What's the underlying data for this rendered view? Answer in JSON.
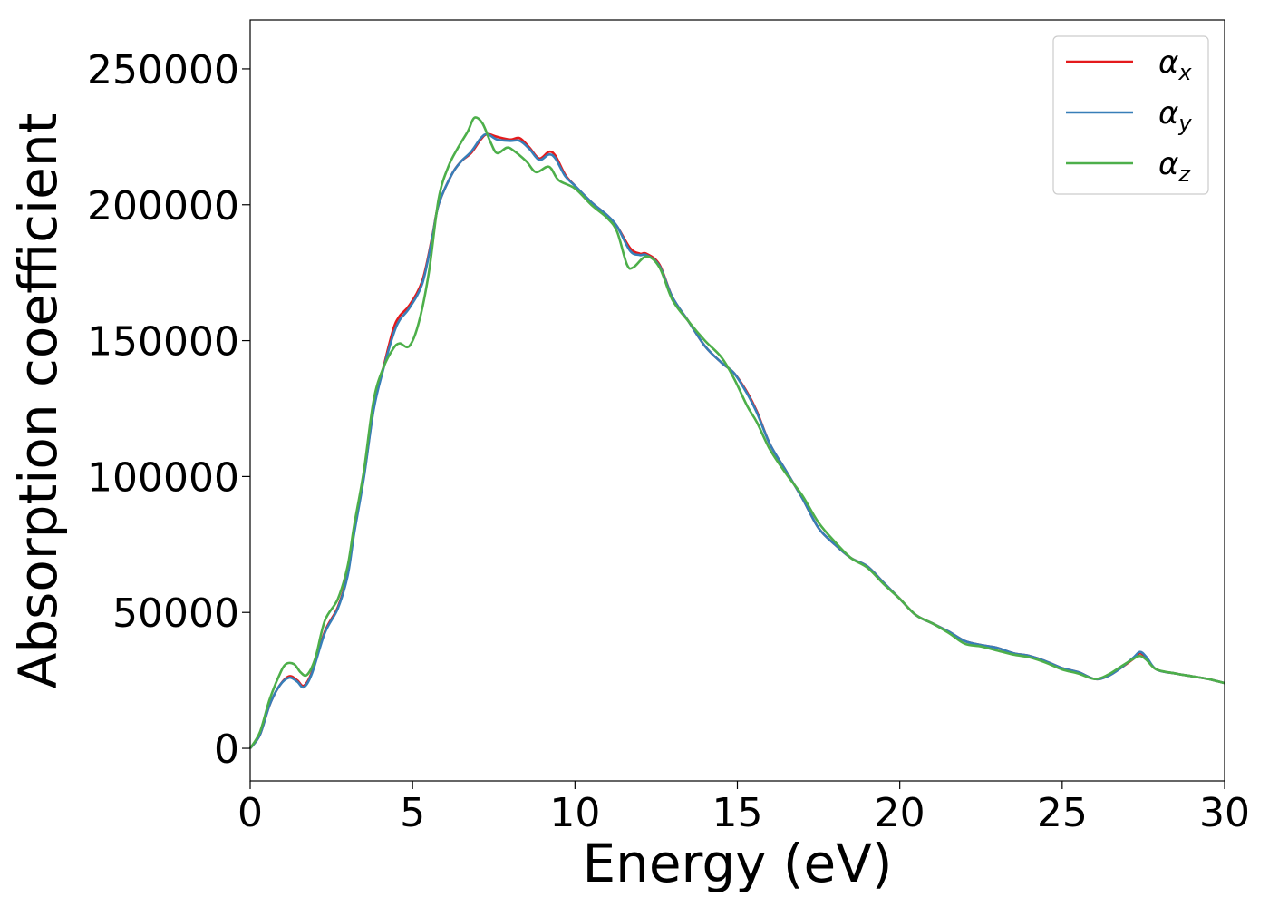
{
  "chart_data": {
    "type": "line",
    "xlabel": "Energy (eV)",
    "ylabel": "Absorption coefficient",
    "xlim": [
      0,
      30
    ],
    "ylim": [
      -12000,
      268000
    ],
    "xticks": [
      0,
      5,
      10,
      15,
      20,
      25,
      30
    ],
    "xtick_labels": [
      "0",
      "5",
      "10",
      "15",
      "20",
      "25",
      "30"
    ],
    "yticks": [
      0,
      50000,
      100000,
      150000,
      200000,
      250000
    ],
    "ytick_labels": [
      "0",
      "50000",
      "100000",
      "150000",
      "200000",
      "250000"
    ],
    "grid": false,
    "legend": {
      "position": "top-right"
    },
    "series": [
      {
        "name": "α",
        "subscript": "x",
        "color": "#e41a1c",
        "points": [
          [
            0,
            0
          ],
          [
            0.3,
            5000
          ],
          [
            0.6,
            16000
          ],
          [
            0.9,
            23000
          ],
          [
            1.2,
            26500
          ],
          [
            1.45,
            25000
          ],
          [
            1.65,
            23000
          ],
          [
            1.9,
            28000
          ],
          [
            2.3,
            43000
          ],
          [
            2.7,
            52000
          ],
          [
            3.0,
            64000
          ],
          [
            3.2,
            80000
          ],
          [
            3.5,
            100000
          ],
          [
            3.8,
            125000
          ],
          [
            4.1,
            140000
          ],
          [
            4.4,
            154000
          ],
          [
            4.6,
            159000
          ],
          [
            4.9,
            163000
          ],
          [
            5.3,
            172000
          ],
          [
            5.6,
            188000
          ],
          [
            5.8,
            200000
          ],
          [
            6.2,
            211000
          ],
          [
            6.5,
            216000
          ],
          [
            6.8,
            219000
          ],
          [
            7.1,
            224000
          ],
          [
            7.3,
            226000
          ],
          [
            7.6,
            225000
          ],
          [
            8.0,
            224000
          ],
          [
            8.3,
            224500
          ],
          [
            8.6,
            221000
          ],
          [
            8.9,
            217000
          ],
          [
            9.2,
            219500
          ],
          [
            9.4,
            218000
          ],
          [
            9.7,
            211000
          ],
          [
            10.0,
            207000
          ],
          [
            10.5,
            201000
          ],
          [
            11.0,
            196000
          ],
          [
            11.3,
            192000
          ],
          [
            11.7,
            184000
          ],
          [
            12.0,
            182000
          ],
          [
            12.2,
            182000
          ],
          [
            12.6,
            178000
          ],
          [
            13.0,
            166000
          ],
          [
            13.5,
            157000
          ],
          [
            14.0,
            148000
          ],
          [
            14.5,
            142000
          ],
          [
            14.9,
            138000
          ],
          [
            15.3,
            131000
          ],
          [
            15.6,
            124000
          ],
          [
            16.0,
            112000
          ],
          [
            16.5,
            102000
          ],
          [
            17.0,
            92000
          ],
          [
            17.5,
            81000
          ],
          [
            18.0,
            75000
          ],
          [
            18.5,
            70000
          ],
          [
            19.0,
            67000
          ],
          [
            19.5,
            61000
          ],
          [
            20.0,
            55000
          ],
          [
            20.5,
            49000
          ],
          [
            21.0,
            46000
          ],
          [
            21.5,
            43000
          ],
          [
            22.0,
            39500
          ],
          [
            22.5,
            38000
          ],
          [
            23.0,
            37000
          ],
          [
            23.5,
            35000
          ],
          [
            24.0,
            34000
          ],
          [
            24.5,
            32000
          ],
          [
            25.0,
            29500
          ],
          [
            25.5,
            28000
          ],
          [
            26.0,
            25500
          ],
          [
            26.4,
            26500
          ],
          [
            26.8,
            29500
          ],
          [
            27.2,
            33000
          ],
          [
            27.4,
            35000
          ],
          [
            27.6,
            33000
          ],
          [
            27.9,
            29000
          ],
          [
            28.5,
            27500
          ],
          [
            29.0,
            26500
          ],
          [
            29.5,
            25500
          ],
          [
            30.0,
            24000
          ]
        ]
      },
      {
        "name": "α",
        "subscript": "y",
        "color": "#377eb8",
        "points": [
          [
            0,
            0
          ],
          [
            0.3,
            5000
          ],
          [
            0.6,
            16000
          ],
          [
            0.9,
            23000
          ],
          [
            1.2,
            26000
          ],
          [
            1.45,
            24500
          ],
          [
            1.65,
            22500
          ],
          [
            1.9,
            27500
          ],
          [
            2.3,
            42500
          ],
          [
            2.7,
            51500
          ],
          [
            3.0,
            63500
          ],
          [
            3.2,
            79000
          ],
          [
            3.5,
            99500
          ],
          [
            3.8,
            124500
          ],
          [
            4.1,
            139500
          ],
          [
            4.4,
            152000
          ],
          [
            4.6,
            157500
          ],
          [
            4.9,
            162000
          ],
          [
            5.3,
            171000
          ],
          [
            5.6,
            187500
          ],
          [
            5.8,
            200000
          ],
          [
            6.2,
            211000
          ],
          [
            6.5,
            216000
          ],
          [
            6.8,
            219500
          ],
          [
            7.1,
            224500
          ],
          [
            7.3,
            226000
          ],
          [
            7.6,
            224000
          ],
          [
            8.0,
            223500
          ],
          [
            8.3,
            223500
          ],
          [
            8.6,
            220500
          ],
          [
            8.9,
            216500
          ],
          [
            9.2,
            218500
          ],
          [
            9.4,
            217000
          ],
          [
            9.7,
            210500
          ],
          [
            10.0,
            207000
          ],
          [
            10.5,
            201000
          ],
          [
            11.0,
            196000
          ],
          [
            11.3,
            192000
          ],
          [
            11.7,
            183000
          ],
          [
            12.0,
            181500
          ],
          [
            12.2,
            181500
          ],
          [
            12.6,
            177500
          ],
          [
            13.0,
            166000
          ],
          [
            13.5,
            157000
          ],
          [
            14.0,
            148000
          ],
          [
            14.5,
            142000
          ],
          [
            14.9,
            138000
          ],
          [
            15.3,
            130500
          ],
          [
            15.6,
            123500
          ],
          [
            16.0,
            112000
          ],
          [
            16.5,
            102000
          ],
          [
            17.0,
            92000
          ],
          [
            17.5,
            81000
          ],
          [
            18.0,
            75000
          ],
          [
            18.5,
            70000
          ],
          [
            19.0,
            67000
          ],
          [
            19.5,
            61000
          ],
          [
            20.0,
            55000
          ],
          [
            20.5,
            49000
          ],
          [
            21.0,
            46000
          ],
          [
            21.5,
            43000
          ],
          [
            22.0,
            39500
          ],
          [
            22.5,
            38000
          ],
          [
            23.0,
            37000
          ],
          [
            23.5,
            35000
          ],
          [
            24.0,
            34000
          ],
          [
            24.5,
            32000
          ],
          [
            25.0,
            29500
          ],
          [
            25.5,
            28000
          ],
          [
            26.0,
            25500
          ],
          [
            26.4,
            26500
          ],
          [
            26.8,
            29500
          ],
          [
            27.2,
            33500
          ],
          [
            27.4,
            35500
          ],
          [
            27.6,
            33500
          ],
          [
            27.9,
            29000
          ],
          [
            28.5,
            27500
          ],
          [
            29.0,
            26500
          ],
          [
            29.5,
            25500
          ],
          [
            30.0,
            24000
          ]
        ]
      },
      {
        "name": "α",
        "subscript": "z",
        "color": "#4daf4a",
        "points": [
          [
            0,
            0
          ],
          [
            0.3,
            6000
          ],
          [
            0.6,
            18000
          ],
          [
            0.9,
            27000
          ],
          [
            1.1,
            31000
          ],
          [
            1.35,
            31000
          ],
          [
            1.55,
            28000
          ],
          [
            1.75,
            27000
          ],
          [
            2.0,
            33000
          ],
          [
            2.3,
            47000
          ],
          [
            2.7,
            55000
          ],
          [
            3.0,
            67000
          ],
          [
            3.2,
            82000
          ],
          [
            3.5,
            102000
          ],
          [
            3.8,
            128000
          ],
          [
            4.1,
            140000
          ],
          [
            4.4,
            147000
          ],
          [
            4.6,
            149000
          ],
          [
            4.9,
            148000
          ],
          [
            5.2,
            157000
          ],
          [
            5.5,
            175000
          ],
          [
            5.8,
            202000
          ],
          [
            6.1,
            214000
          ],
          [
            6.4,
            221000
          ],
          [
            6.7,
            227000
          ],
          [
            6.9,
            232000
          ],
          [
            7.15,
            230000
          ],
          [
            7.4,
            223000
          ],
          [
            7.6,
            219000
          ],
          [
            7.9,
            221000
          ],
          [
            8.1,
            220000
          ],
          [
            8.5,
            216000
          ],
          [
            8.8,
            212000
          ],
          [
            9.2,
            214000
          ],
          [
            9.5,
            209000
          ],
          [
            10.0,
            206000
          ],
          [
            10.5,
            200000
          ],
          [
            11.0,
            195000
          ],
          [
            11.3,
            190000
          ],
          [
            11.6,
            178000
          ],
          [
            11.8,
            177000
          ],
          [
            12.2,
            181000
          ],
          [
            12.6,
            177000
          ],
          [
            13.0,
            165000
          ],
          [
            13.5,
            157000
          ],
          [
            14.0,
            150000
          ],
          [
            14.5,
            144000
          ],
          [
            14.9,
            136000
          ],
          [
            15.3,
            126000
          ],
          [
            15.6,
            120000
          ],
          [
            16.0,
            110000
          ],
          [
            16.5,
            101000
          ],
          [
            17.0,
            93000
          ],
          [
            17.5,
            83000
          ],
          [
            18.0,
            76000
          ],
          [
            18.5,
            70000
          ],
          [
            19.0,
            66500
          ],
          [
            19.5,
            60500
          ],
          [
            20.0,
            55000
          ],
          [
            20.5,
            49000
          ],
          [
            21.0,
            46000
          ],
          [
            21.5,
            42500
          ],
          [
            22.0,
            38500
          ],
          [
            22.5,
            37500
          ],
          [
            23.0,
            36000
          ],
          [
            23.5,
            34500
          ],
          [
            24.0,
            33500
          ],
          [
            24.5,
            31500
          ],
          [
            25.0,
            29000
          ],
          [
            25.5,
            27500
          ],
          [
            26.0,
            25500
          ],
          [
            26.4,
            27000
          ],
          [
            26.8,
            30000
          ],
          [
            27.2,
            33000
          ],
          [
            27.4,
            34000
          ],
          [
            27.6,
            32500
          ],
          [
            27.9,
            29000
          ],
          [
            28.5,
            27500
          ],
          [
            29.0,
            26500
          ],
          [
            29.5,
            25500
          ],
          [
            30.0,
            24000
          ]
        ]
      }
    ]
  }
}
